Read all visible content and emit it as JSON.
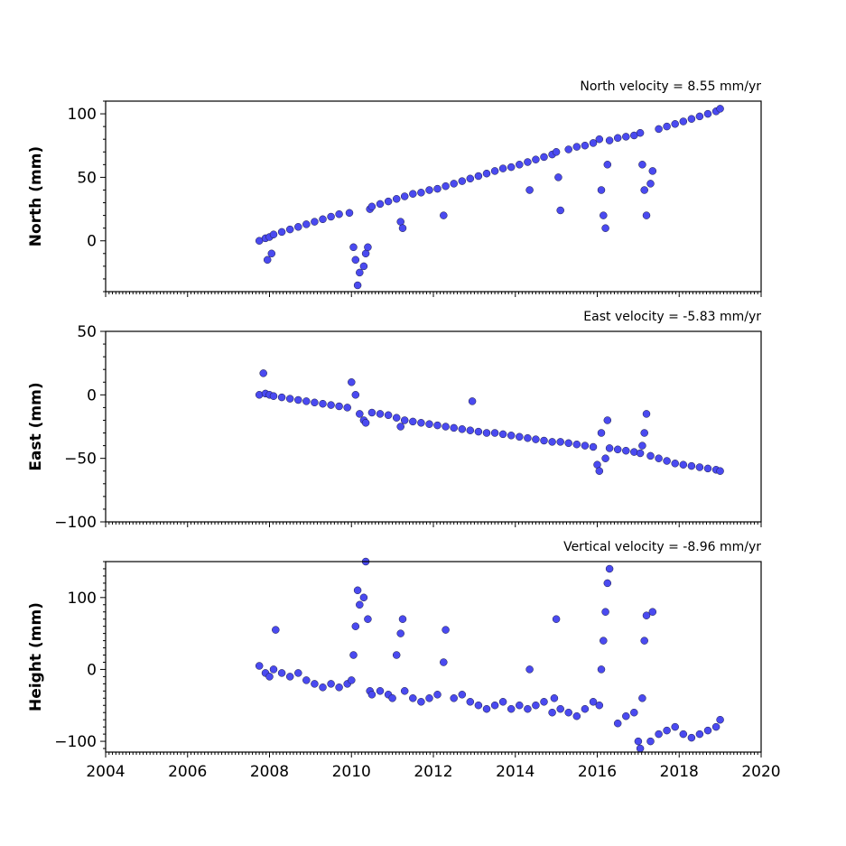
{
  "chart_data": [
    {
      "type": "scatter",
      "title": "North velocity = 8.55 mm/yr",
      "xlabel": "",
      "ylabel": "North (mm)",
      "xlim": [
        2004,
        2020
      ],
      "ylim": [
        -40,
        110
      ],
      "yticks": [
        "0",
        "50",
        "100"
      ],
      "ytick_values": [
        0,
        50,
        100
      ],
      "grid": false,
      "color": "#4a4af0",
      "series": [
        {
          "x": [
            2007.75,
            2007.9,
            2008.0,
            2008.1,
            2008.3,
            2008.5,
            2008.7,
            2008.9,
            2009.1,
            2009.3,
            2009.5,
            2009.7,
            2009.95,
            2010.05,
            2010.1,
            2010.15,
            2010.2,
            2010.3,
            2010.35,
            2010.4,
            2010.45,
            2010.5,
            2010.7,
            2010.9,
            2011.1,
            2011.2,
            2011.25,
            2011.3,
            2011.5,
            2011.7,
            2011.9,
            2012.1,
            2012.25,
            2012.3,
            2012.5,
            2012.7,
            2012.9,
            2013.1,
            2013.3,
            2013.5,
            2013.7,
            2013.9,
            2014.1,
            2014.3,
            2014.35,
            2014.5,
            2014.7,
            2014.9,
            2015.0,
            2015.05,
            2015.1,
            2015.3,
            2015.5,
            2015.7,
            2015.9,
            2016.05,
            2016.1,
            2016.15,
            2016.2,
            2016.25,
            2016.3,
            2016.5,
            2016.7,
            2016.9,
            2017.05,
            2017.1,
            2017.15,
            2017.2,
            2017.3,
            2017.35,
            2017.5,
            2017.7,
            2017.9,
            2018.1,
            2018.3,
            2018.5,
            2018.7,
            2018.9,
            2019.0,
            2007.95,
            2008.05
          ],
          "y": [
            0,
            2,
            3,
            5,
            7,
            9,
            11,
            13,
            15,
            17,
            19,
            21,
            22,
            -5,
            -15,
            -35,
            -25,
            -20,
            -10,
            -5,
            25,
            27,
            29,
            31,
            33,
            15,
            10,
            35,
            37,
            38,
            40,
            41,
            20,
            43,
            45,
            47,
            49,
            51,
            53,
            55,
            57,
            58,
            60,
            62,
            40,
            64,
            66,
            68,
            70,
            50,
            24,
            72,
            74,
            75,
            77,
            80,
            40,
            20,
            10,
            60,
            79,
            81,
            82,
            83,
            85,
            60,
            40,
            20,
            45,
            55,
            88,
            90,
            92,
            94,
            96,
            98,
            100,
            102,
            104,
            -15,
            -10
          ]
        }
      ]
    },
    {
      "type": "scatter",
      "title": "East velocity = -5.83 mm/yr",
      "xlabel": "",
      "ylabel": "East (mm)",
      "xlim": [
        2004,
        2020
      ],
      "ylim": [
        -100,
        50
      ],
      "yticks": [
        "50",
        "0",
        "−50",
        "−100"
      ],
      "ytick_values": [
        50,
        0,
        -50,
        -100
      ],
      "grid": false,
      "color": "#4a4af0",
      "series": [
        {
          "x": [
            2007.75,
            2007.9,
            2008.0,
            2008.1,
            2008.3,
            2008.5,
            2008.7,
            2008.9,
            2009.1,
            2009.3,
            2009.5,
            2009.7,
            2009.9,
            2010.0,
            2010.1,
            2010.2,
            2010.3,
            2010.35,
            2010.5,
            2010.7,
            2010.9,
            2011.1,
            2011.2,
            2011.3,
            2011.5,
            2011.7,
            2011.9,
            2012.1,
            2012.3,
            2012.5,
            2012.7,
            2012.9,
            2012.95,
            2013.1,
            2013.3,
            2013.5,
            2013.7,
            2013.9,
            2014.1,
            2014.3,
            2014.5,
            2014.7,
            2014.9,
            2015.1,
            2015.3,
            2015.5,
            2015.7,
            2015.9,
            2016.0,
            2016.05,
            2016.1,
            2016.2,
            2016.25,
            2016.3,
            2016.5,
            2016.7,
            2016.9,
            2017.05,
            2017.1,
            2017.15,
            2017.2,
            2017.3,
            2017.5,
            2017.7,
            2017.9,
            2018.1,
            2018.3,
            2018.5,
            2018.7,
            2018.9,
            2019.0,
            2007.85
          ],
          "y": [
            0,
            1,
            0,
            -1,
            -2,
            -3,
            -4,
            -5,
            -6,
            -7,
            -8,
            -9,
            -10,
            10,
            0,
            -15,
            -20,
            -22,
            -14,
            -15,
            -16,
            -18,
            -25,
            -20,
            -21,
            -22,
            -23,
            -24,
            -25,
            -26,
            -27,
            -28,
            -5,
            -29,
            -30,
            -30,
            -31,
            -32,
            -33,
            -34,
            -35,
            -36,
            -37,
            -37,
            -38,
            -39,
            -40,
            -41,
            -55,
            -60,
            -30,
            -50,
            -20,
            -42,
            -43,
            -44,
            -45,
            -46,
            -40,
            -30,
            -15,
            -48,
            -50,
            -52,
            -54,
            -55,
            -56,
            -57,
            -58,
            -59,
            -60,
            17
          ]
        }
      ]
    },
    {
      "type": "scatter",
      "title": "Vertical velocity = -8.96 mm/yr",
      "xlabel": "",
      "ylabel": "Height (mm)",
      "xlim": [
        2004,
        2020
      ],
      "ylim": [
        -115,
        150
      ],
      "yticks": [
        "100",
        "0",
        "−100"
      ],
      "ytick_values": [
        100,
        0,
        -100
      ],
      "xticks": [
        "2004",
        "2006",
        "2008",
        "2010",
        "2012",
        "2014",
        "2016",
        "2018",
        "2020"
      ],
      "xtick_values": [
        2004,
        2006,
        2008,
        2010,
        2012,
        2014,
        2016,
        2018,
        2020
      ],
      "grid": false,
      "color": "#4a4af0",
      "series": [
        {
          "x": [
            2007.75,
            2007.9,
            2008.0,
            2008.1,
            2008.15,
            2008.3,
            2008.5,
            2008.7,
            2008.9,
            2009.1,
            2009.3,
            2009.5,
            2009.7,
            2009.9,
            2010.0,
            2010.05,
            2010.1,
            2010.15,
            2010.2,
            2010.3,
            2010.35,
            2010.4,
            2010.45,
            2010.5,
            2010.7,
            2010.9,
            2011.0,
            2011.1,
            2011.2,
            2011.25,
            2011.3,
            2011.5,
            2011.7,
            2011.9,
            2012.1,
            2012.25,
            2012.3,
            2012.5,
            2012.7,
            2012.9,
            2013.1,
            2013.3,
            2013.5,
            2013.7,
            2013.9,
            2014.1,
            2014.3,
            2014.35,
            2014.5,
            2014.7,
            2014.9,
            2014.95,
            2015.0,
            2015.1,
            2015.3,
            2015.5,
            2015.7,
            2015.9,
            2016.05,
            2016.1,
            2016.15,
            2016.2,
            2016.25,
            2016.3,
            2016.5,
            2016.7,
            2016.9,
            2017.0,
            2017.05,
            2017.1,
            2017.15,
            2017.2,
            2017.3,
            2017.35,
            2017.5,
            2017.7,
            2017.9,
            2018.1,
            2018.3,
            2018.5,
            2018.7,
            2018.9,
            2019.0
          ],
          "y": [
            5,
            -5,
            -10,
            0,
            55,
            -5,
            -10,
            -5,
            -15,
            -20,
            -25,
            -20,
            -25,
            -20,
            -15,
            20,
            60,
            110,
            90,
            100,
            150,
            70,
            -30,
            -35,
            -30,
            -35,
            -40,
            20,
            50,
            70,
            -30,
            -40,
            -45,
            -40,
            -35,
            10,
            55,
            -40,
            -35,
            -45,
            -50,
            -55,
            -50,
            -45,
            -55,
            -50,
            -55,
            0,
            -50,
            -45,
            -60,
            -40,
            70,
            -55,
            -60,
            -65,
            -55,
            -45,
            -50,
            0,
            40,
            80,
            120,
            140,
            -75,
            -65,
            -60,
            -100,
            -110,
            -40,
            40,
            75,
            -100,
            80,
            -90,
            -85,
            -80,
            -90,
            -95,
            -90,
            -85,
            -80,
            -70
          ]
        }
      ]
    }
  ]
}
